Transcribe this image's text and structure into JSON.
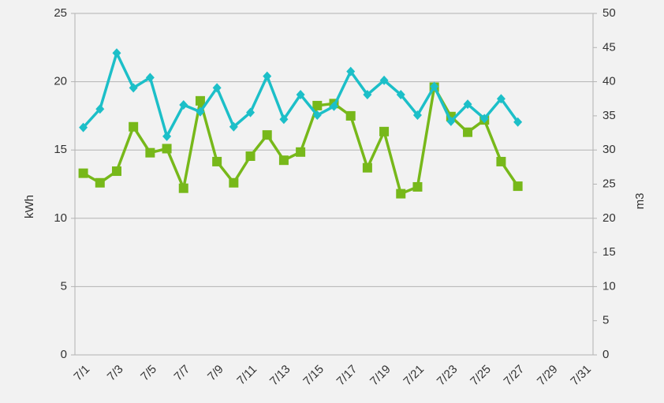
{
  "chart_data": {
    "type": "line",
    "categories": [
      "7/1",
      null,
      "7/3",
      null,
      "7/5",
      null,
      "7/7",
      null,
      "7/9",
      null,
      "7/11",
      null,
      "7/13",
      null,
      "7/15",
      null,
      "7/17",
      null,
      "7/19",
      null,
      "7/21",
      null,
      "7/23",
      null,
      "7/25",
      null,
      "7/27",
      null,
      "7/29",
      null,
      "7/31"
    ],
    "y_label": "kWh",
    "y2_label": "m3",
    "ylim": [
      0,
      25
    ],
    "yticks": [
      0,
      5,
      10,
      15,
      20,
      25
    ],
    "y2lim": [
      0,
      50
    ],
    "y2ticks": [
      0,
      5,
      10,
      15,
      20,
      25,
      30,
      35,
      40,
      45,
      50
    ],
    "grid": true,
    "series": [
      {
        "color": "#77b81a",
        "marker": "square",
        "values": [
          13.3,
          12.6,
          13.45,
          16.7,
          14.8,
          15.1,
          12.2,
          18.6,
          14.15,
          12.6,
          14.55,
          16.1,
          14.25,
          14.85,
          18.25,
          18.4,
          17.5,
          13.7,
          16.35,
          11.8,
          12.3,
          19.6,
          17.45,
          16.3,
          17.2,
          14.15,
          12.35,
          null,
          null,
          null,
          null
        ]
      },
      {
        "color": "#1cbfc8",
        "marker": "diamond",
        "axis": "y2",
        "values": [
          33.3,
          36.0,
          44.2,
          39.1,
          40.6,
          32.0,
          36.6,
          35.6,
          39.1,
          33.4,
          35.5,
          40.8,
          34.5,
          38.1,
          35.1,
          36.4,
          41.5,
          38.1,
          40.2,
          38.1,
          35.1,
          39.3,
          34.2,
          36.7,
          34.6,
          37.5,
          34.1,
          null,
          null,
          null,
          null
        ]
      }
    ]
  }
}
